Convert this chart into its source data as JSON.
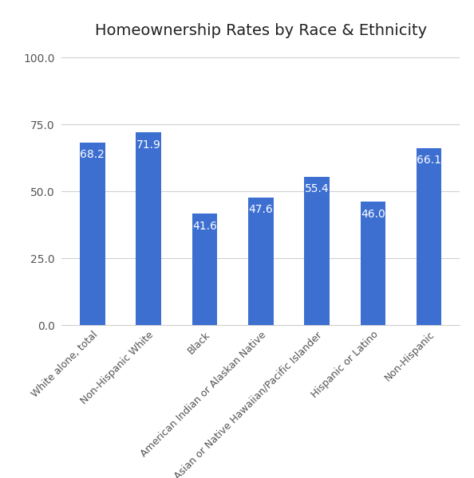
{
  "title": "Homeownership Rates by Race & Ethnicity",
  "categories": [
    "White alone, total",
    "Non-Hispanic White",
    "Black",
    "American Indian or Alaskan Native",
    "Asian or Native Hawaiian/Pacific Islander",
    "Hispanic or Latino",
    "Non-Hispanic"
  ],
  "values": [
    68.2,
    71.9,
    41.6,
    47.6,
    55.4,
    46.0,
    66.1
  ],
  "bar_color": "#3d6fd1",
  "label_color": "#ffffff",
  "background_color": "#ffffff",
  "ylim": [
    0,
    100
  ],
  "yticks": [
    0.0,
    25.0,
    50.0,
    75.0,
    100.0
  ],
  "title_fontsize": 14,
  "label_fontsize": 10,
  "tick_fontsize": 10,
  "xtick_fontsize": 9,
  "grid_color": "#d0d0d0",
  "spine_color": "#d0d0d0"
}
